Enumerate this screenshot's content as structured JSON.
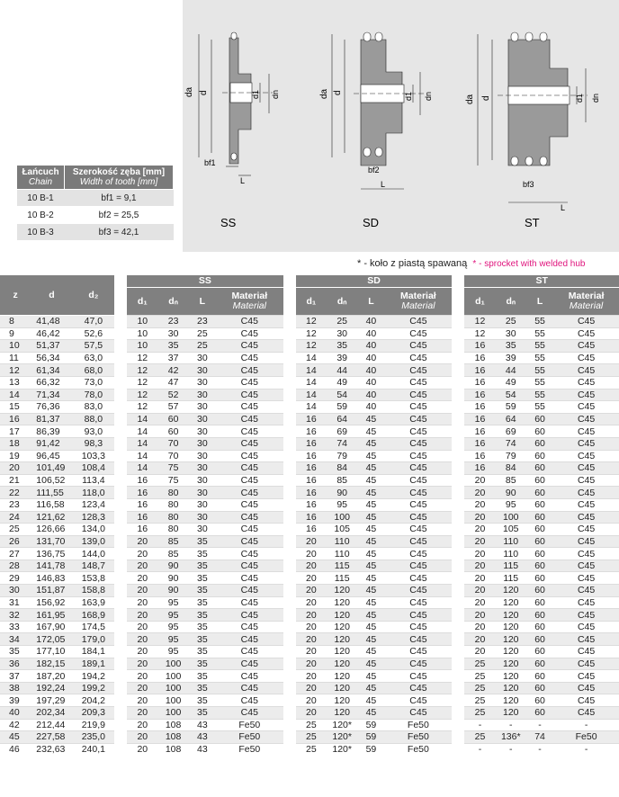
{
  "diagram": {
    "variants": [
      "SS",
      "SD",
      "ST"
    ],
    "dim_labels": {
      "da": "da",
      "d": "d",
      "d1": "d1",
      "dn": "dn",
      "L": "L",
      "bf1": "bf1",
      "bf2": "bf2",
      "bf3": "bf3"
    }
  },
  "chain_table": {
    "headers": [
      {
        "label": "Łańcuch",
        "sub": "Chain"
      },
      {
        "label": "Szerokość zęba [mm]",
        "sub": "Width of tooth [mm]"
      }
    ],
    "rows": [
      {
        "chain": "10 B-1",
        "width": "bf1 = 9,1"
      },
      {
        "chain": "10 B-2",
        "width": "bf2 = 25,5"
      },
      {
        "chain": "10 B-3",
        "width": "bf3 = 42,1"
      }
    ]
  },
  "note": {
    "pl": "* - koło z piastą spawaną",
    "en": "* - sprocket with welded hub"
  },
  "main_table": {
    "group_headers": [
      "SS",
      "SD",
      "ST"
    ],
    "headers": {
      "z": "z",
      "d": "d",
      "d2": "d₂",
      "d1": "d₁",
      "dn": "dₙ",
      "L": "L",
      "material": "Materiał",
      "material_sub": "Material"
    },
    "rows": [
      [
        "8",
        "41,48",
        "47,0",
        "10",
        "23",
        "23",
        "C45",
        "12",
        "25",
        "40",
        "C45",
        "12",
        "25",
        "55",
        "C45"
      ],
      [
        "9",
        "46,42",
        "52,6",
        "10",
        "30",
        "25",
        "C45",
        "12",
        "30",
        "40",
        "C45",
        "12",
        "30",
        "55",
        "C45"
      ],
      [
        "10",
        "51,37",
        "57,5",
        "10",
        "35",
        "25",
        "C45",
        "12",
        "35",
        "40",
        "C45",
        "16",
        "35",
        "55",
        "C45"
      ],
      [
        "11",
        "56,34",
        "63,0",
        "12",
        "37",
        "30",
        "C45",
        "14",
        "39",
        "40",
        "C45",
        "16",
        "39",
        "55",
        "C45"
      ],
      [
        "12",
        "61,34",
        "68,0",
        "12",
        "42",
        "30",
        "C45",
        "14",
        "44",
        "40",
        "C45",
        "16",
        "44",
        "55",
        "C45"
      ],
      [
        "13",
        "66,32",
        "73,0",
        "12",
        "47",
        "30",
        "C45",
        "14",
        "49",
        "40",
        "C45",
        "16",
        "49",
        "55",
        "C45"
      ],
      [
        "14",
        "71,34",
        "78,0",
        "12",
        "52",
        "30",
        "C45",
        "14",
        "54",
        "40",
        "C45",
        "16",
        "54",
        "55",
        "C45"
      ],
      [
        "15",
        "76,36",
        "83,0",
        "12",
        "57",
        "30",
        "C45",
        "14",
        "59",
        "40",
        "C45",
        "16",
        "59",
        "55",
        "C45"
      ],
      [
        "16",
        "81,37",
        "88,0",
        "14",
        "60",
        "30",
        "C45",
        "16",
        "64",
        "45",
        "C45",
        "16",
        "64",
        "60",
        "C45"
      ],
      [
        "17",
        "86,39",
        "93,0",
        "14",
        "60",
        "30",
        "C45",
        "16",
        "69",
        "45",
        "C45",
        "16",
        "69",
        "60",
        "C45"
      ],
      [
        "18",
        "91,42",
        "98,3",
        "14",
        "70",
        "30",
        "C45",
        "16",
        "74",
        "45",
        "C45",
        "16",
        "74",
        "60",
        "C45"
      ],
      [
        "19",
        "96,45",
        "103,3",
        "14",
        "70",
        "30",
        "C45",
        "16",
        "79",
        "45",
        "C45",
        "16",
        "79",
        "60",
        "C45"
      ],
      [
        "20",
        "101,49",
        "108,4",
        "14",
        "75",
        "30",
        "C45",
        "16",
        "84",
        "45",
        "C45",
        "16",
        "84",
        "60",
        "C45"
      ],
      [
        "21",
        "106,52",
        "113,4",
        "16",
        "75",
        "30",
        "C45",
        "16",
        "85",
        "45",
        "C45",
        "20",
        "85",
        "60",
        "C45"
      ],
      [
        "22",
        "111,55",
        "118,0",
        "16",
        "80",
        "30",
        "C45",
        "16",
        "90",
        "45",
        "C45",
        "20",
        "90",
        "60",
        "C45"
      ],
      [
        "23",
        "116,58",
        "123,4",
        "16",
        "80",
        "30",
        "C45",
        "16",
        "95",
        "45",
        "C45",
        "20",
        "95",
        "60",
        "C45"
      ],
      [
        "24",
        "121,62",
        "128,3",
        "16",
        "80",
        "30",
        "C45",
        "16",
        "100",
        "45",
        "C45",
        "20",
        "100",
        "60",
        "C45"
      ],
      [
        "25",
        "126,66",
        "134,0",
        "16",
        "80",
        "30",
        "C45",
        "16",
        "105",
        "45",
        "C45",
        "20",
        "105",
        "60",
        "C45"
      ],
      [
        "26",
        "131,70",
        "139,0",
        "20",
        "85",
        "35",
        "C45",
        "20",
        "110",
        "45",
        "C45",
        "20",
        "110",
        "60",
        "C45"
      ],
      [
        "27",
        "136,75",
        "144,0",
        "20",
        "85",
        "35",
        "C45",
        "20",
        "110",
        "45",
        "C45",
        "20",
        "110",
        "60",
        "C45"
      ],
      [
        "28",
        "141,78",
        "148,7",
        "20",
        "90",
        "35",
        "C45",
        "20",
        "115",
        "45",
        "C45",
        "20",
        "115",
        "60",
        "C45"
      ],
      [
        "29",
        "146,83",
        "153,8",
        "20",
        "90",
        "35",
        "C45",
        "20",
        "115",
        "45",
        "C45",
        "20",
        "115",
        "60",
        "C45"
      ],
      [
        "30",
        "151,87",
        "158,8",
        "20",
        "90",
        "35",
        "C45",
        "20",
        "120",
        "45",
        "C45",
        "20",
        "120",
        "60",
        "C45"
      ],
      [
        "31",
        "156,92",
        "163,9",
        "20",
        "95",
        "35",
        "C45",
        "20",
        "120",
        "45",
        "C45",
        "20",
        "120",
        "60",
        "C45"
      ],
      [
        "32",
        "161,95",
        "168,9",
        "20",
        "95",
        "35",
        "C45",
        "20",
        "120",
        "45",
        "C45",
        "20",
        "120",
        "60",
        "C45"
      ],
      [
        "33",
        "167,90",
        "174,5",
        "20",
        "95",
        "35",
        "C45",
        "20",
        "120",
        "45",
        "C45",
        "20",
        "120",
        "60",
        "C45"
      ],
      [
        "34",
        "172,05",
        "179,0",
        "20",
        "95",
        "35",
        "C45",
        "20",
        "120",
        "45",
        "C45",
        "20",
        "120",
        "60",
        "C45"
      ],
      [
        "35",
        "177,10",
        "184,1",
        "20",
        "95",
        "35",
        "C45",
        "20",
        "120",
        "45",
        "C45",
        "20",
        "120",
        "60",
        "C45"
      ],
      [
        "36",
        "182,15",
        "189,1",
        "20",
        "100",
        "35",
        "C45",
        "20",
        "120",
        "45",
        "C45",
        "25",
        "120",
        "60",
        "C45"
      ],
      [
        "37",
        "187,20",
        "194,2",
        "20",
        "100",
        "35",
        "C45",
        "20",
        "120",
        "45",
        "C45",
        "25",
        "120",
        "60",
        "C45"
      ],
      [
        "38",
        "192,24",
        "199,2",
        "20",
        "100",
        "35",
        "C45",
        "20",
        "120",
        "45",
        "C45",
        "25",
        "120",
        "60",
        "C45"
      ],
      [
        "39",
        "197,29",
        "204,2",
        "20",
        "100",
        "35",
        "C45",
        "20",
        "120",
        "45",
        "C45",
        "25",
        "120",
        "60",
        "C45"
      ],
      [
        "40",
        "202,34",
        "209,3",
        "20",
        "100",
        "35",
        "C45",
        "20",
        "120",
        "45",
        "C45",
        "25",
        "120",
        "60",
        "C45"
      ],
      [
        "42",
        "212,44",
        "219,9",
        "20",
        "108",
        "43",
        "Fe50",
        "25",
        "120*",
        "59",
        "Fe50",
        "-",
        "-",
        "-",
        "-"
      ],
      [
        "45",
        "227,58",
        "235,0",
        "20",
        "108",
        "43",
        "Fe50",
        "25",
        "120*",
        "59",
        "Fe50",
        "25",
        "136*",
        "74",
        "Fe50"
      ],
      [
        "46",
        "232,63",
        "240,1",
        "20",
        "108",
        "43",
        "Fe50",
        "25",
        "120*",
        "59",
        "Fe50",
        "-",
        "-",
        "-",
        "-"
      ]
    ]
  }
}
